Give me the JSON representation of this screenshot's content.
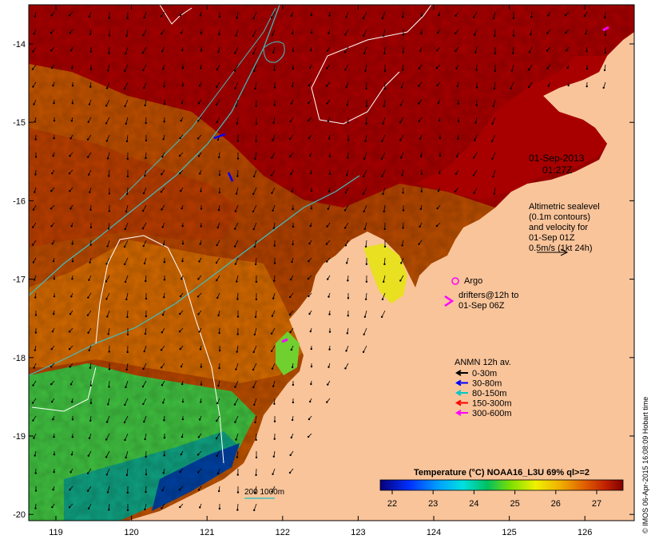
{
  "map": {
    "lon_ticks": [
      "119",
      "120",
      "121",
      "122",
      "123",
      "124",
      "125",
      "126"
    ],
    "lat_ticks": [
      "-14",
      "-15",
      "-16",
      "-17",
      "-18",
      "-19",
      "-20"
    ],
    "lon_range": [
      118.6,
      126.6
    ],
    "lat_range": [
      -20.1,
      -13.7
    ]
  },
  "annotations": {
    "date": "01-Sep-2013",
    "time": "01:27Z",
    "altimetry": [
      "Altimetric sealevel",
      "(0.1m contours)",
      "and velocity for",
      "01-Sep 01Z",
      "0.5m/s (1kt 24h)"
    ],
    "argo_label": "Argo",
    "drifters": [
      "drifters@12h to",
      "01-Sep 06Z"
    ],
    "anmn_title": "ANMN 12h av.",
    "anmn_items": [
      {
        "label": "0-30m",
        "color": "#000000"
      },
      {
        "label": "30-80m",
        "color": "#0000ff"
      },
      {
        "label": "80-150m",
        "color": "#00c8c8"
      },
      {
        "label": "150-300m",
        "color": "#ff0000"
      },
      {
        "label": "300-600m",
        "color": "#ff00ff"
      }
    ],
    "bathy_label": "200  1000m"
  },
  "colorbar": {
    "title": "Temperature (°C) NOAA16_L3U 69% ql>=2",
    "ticks": [
      "22",
      "23",
      "24",
      "25",
      "26",
      "27"
    ]
  },
  "credit": "© IMOS 06-Apr-2015 16:08:09 Hobart time",
  "colors": {
    "land": "#f9c49a",
    "sst_warm": "#a00000",
    "sst_mid": "#d06000",
    "sst_cool": "#20b040",
    "altimetry_contour": "#ffffff",
    "bathy_contour": "#40c0c0"
  }
}
